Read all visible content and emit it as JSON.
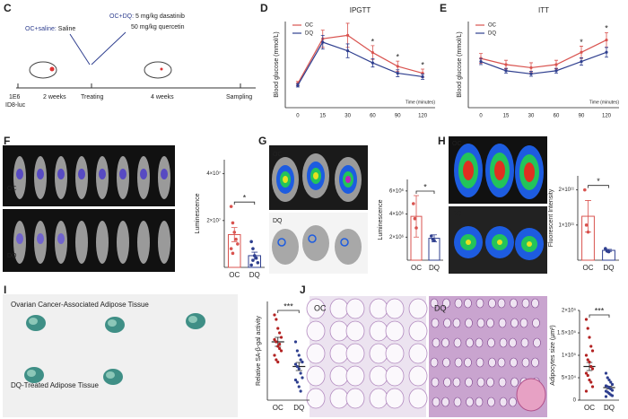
{
  "figure": {
    "panel_letters": [
      "C",
      "D",
      "E",
      "F",
      "G",
      "H",
      "I",
      "J"
    ],
    "timeline": {
      "oc_saline": "OC+saline:",
      "saline": "Saline",
      "oc_dq": "OC+DQ:",
      "dose1": "5 mg/kg dasatinib",
      "dose2": "50 mg/kg quercetin",
      "start1": "1E6",
      "start2": "ID8-luc",
      "period1": "2 weeks",
      "treating": "Treating",
      "period2": "4 weeks",
      "sampling": "Sampling"
    },
    "image_labels": {
      "f_oc": "OC",
      "f_dq": "DQ",
      "g_oc": "OC",
      "g_dq": "DQ",
      "h_oc": "OC",
      "h_dq": "DQ",
      "i_top": "Ovarian Cancer-Associated Adipose Tissue",
      "i_bottom": "DQ-Treated Adipose Tissue",
      "j_oc": "OC",
      "j_dq": "DQ"
    }
  },
  "chart_data": [
    {
      "type": "line",
      "title": "IPGTT",
      "x_label": "Time (minutes)",
      "y_label": "Blood glucose (mmol/L)",
      "categories": [
        "0",
        "15",
        "30",
        "60",
        "90",
        "120"
      ],
      "series": [
        {
          "name": "OC",
          "color": "#d9534f",
          "values": [
            7,
            20,
            21,
            16,
            12,
            10
          ],
          "errors": [
            0.6,
            2.5,
            3.5,
            2,
            1.5,
            1.2
          ]
        },
        {
          "name": "DQ",
          "color": "#2f3f8f",
          "values": [
            6.5,
            19,
            16.5,
            13,
            10,
            9
          ],
          "errors": [
            0.5,
            2,
            2,
            1.2,
            1,
            0.8
          ]
        }
      ],
      "ylim": [
        0,
        25
      ],
      "annotations": [
        {
          "text": "*",
          "at": "60"
        },
        {
          "text": "*",
          "at": "90"
        },
        {
          "text": "*",
          "at": "120"
        }
      ]
    },
    {
      "type": "line",
      "title": "ITT",
      "x_label": "Time (minutes)",
      "y_label": "Blood glucose (mmol/L)",
      "categories": [
        "0",
        "15",
        "30",
        "60",
        "90",
        "120"
      ],
      "series": [
        {
          "name": "OC",
          "color": "#d9534f",
          "values": [
            8,
            7,
            6.5,
            7,
            9,
            11
          ],
          "errors": [
            0.8,
            0.7,
            0.8,
            0.7,
            1,
            1.2
          ]
        },
        {
          "name": "DQ",
          "color": "#2f3f8f",
          "values": [
            7.5,
            6,
            5.5,
            6,
            7.5,
            9
          ],
          "errors": [
            0.5,
            0.4,
            0.4,
            0.4,
            0.6,
            0.8
          ]
        }
      ],
      "ylim": [
        0,
        14
      ],
      "annotations": [
        {
          "text": "*",
          "at": "90"
        },
        {
          "text": "*",
          "at": "120"
        }
      ]
    },
    {
      "type": "bar",
      "y_label": "Luminescence",
      "categories": [
        "OC",
        "DQ"
      ],
      "colors": [
        "#d9534f",
        "#2f3f8f"
      ],
      "values": [
        14000000,
        5000000
      ],
      "errors": [
        3000000,
        1500000
      ],
      "points": [
        [
          26000000,
          19000000,
          15000000,
          12000000,
          10000000,
          8000000,
          6000000
        ],
        [
          11000000,
          8000000,
          5000000,
          4000000,
          2000000,
          1000000,
          3000000
        ]
      ],
      "ylim": [
        0,
        46000000
      ],
      "yticks": [
        {
          "value": 20000000,
          "label": "2×10⁷"
        },
        {
          "value": 40000000,
          "label": "4×10⁷"
        }
      ],
      "significance": "*"
    },
    {
      "type": "bar",
      "y_label": "Luminescence",
      "categories": [
        "OC",
        "DQ"
      ],
      "colors": [
        "#d9534f",
        "#2f3f8f"
      ],
      "values": [
        3800000,
        1900000
      ],
      "errors": [
        1800000,
        300000
      ],
      "points": [
        [
          4900000,
          3600000,
          2800000
        ],
        [
          2100000,
          1800000,
          1700000
        ]
      ],
      "ylim": [
        0,
        7000000
      ],
      "yticks": [
        {
          "value": 2000000,
          "label": "2×10⁶"
        },
        {
          "value": 4000000,
          "label": "4×10⁶"
        },
        {
          "value": 6000000,
          "label": "6×10⁶"
        }
      ],
      "significance": "*"
    },
    {
      "type": "bar",
      "y_label": "Fluorescent Intensity",
      "categories": [
        "OC",
        "DQ"
      ],
      "colors": [
        "#d9534f",
        "#2f3f8f"
      ],
      "values": [
        125000000000,
        28000000000
      ],
      "errors": [
        45000000000,
        3000000000
      ],
      "points": [
        [
          200000000000,
          100000000000,
          80000000000
        ],
        [
          33000000000,
          26000000000,
          24000000000
        ]
      ],
      "ylim": [
        0,
        240000000000
      ],
      "yticks": [
        {
          "value": 100000000000,
          "label": "1×10¹¹"
        },
        {
          "value": 200000000000,
          "label": "2×10¹¹"
        }
      ],
      "significance": "*"
    },
    {
      "type": "dot",
      "y_label": "Relative SA-β-gal activity",
      "categories": [
        "OC",
        "DQ"
      ],
      "colors": [
        "#b22222",
        "#2f3f8f"
      ],
      "values": [
        1.3,
        0.75
      ],
      "errors": [
        0.1,
        0.09
      ],
      "points": [
        [
          1.9,
          1.8,
          1.6,
          1.5,
          1.4,
          1.35,
          1.3,
          1.2,
          1.15,
          1.1,
          1.0,
          0.9,
          0.85,
          1.25
        ],
        [
          1.3,
          1.1,
          1.0,
          0.9,
          0.85,
          0.8,
          0.75,
          0.7,
          0.6,
          0.5,
          0.45,
          0.4,
          0.3,
          0.2
        ]
      ],
      "ylim": [
        0,
        2.2
      ],
      "significance": "***"
    },
    {
      "type": "dot",
      "y_label": "Adipocytes size (µm²)",
      "categories": [
        "OC",
        "DQ"
      ],
      "colors": [
        "#b22222",
        "#2f3f8f"
      ],
      "values": [
        75000,
        28000
      ],
      "errors": [
        9000,
        3000
      ],
      "points": [
        [
          180000,
          160000,
          140000,
          120000,
          110000,
          100000,
          90000,
          85000,
          75000,
          70000,
          60000,
          55000,
          45000,
          40000,
          30000,
          20000
        ],
        [
          60000,
          50000,
          45000,
          40000,
          35000,
          32000,
          30000,
          28000,
          25000,
          22000,
          20000,
          18000,
          15000,
          12000,
          10000,
          8000
        ]
      ],
      "ylim": [
        0,
        200000
      ],
      "yticks": [
        0,
        {
          "value": 50000,
          "label": "5×10⁴"
        },
        {
          "value": 100000,
          "label": "1×10⁵"
        },
        {
          "value": 150000,
          "label": "1.5×10⁵"
        },
        {
          "value": 200000,
          "label": "2×10⁵"
        }
      ],
      "significance": "***"
    }
  ]
}
